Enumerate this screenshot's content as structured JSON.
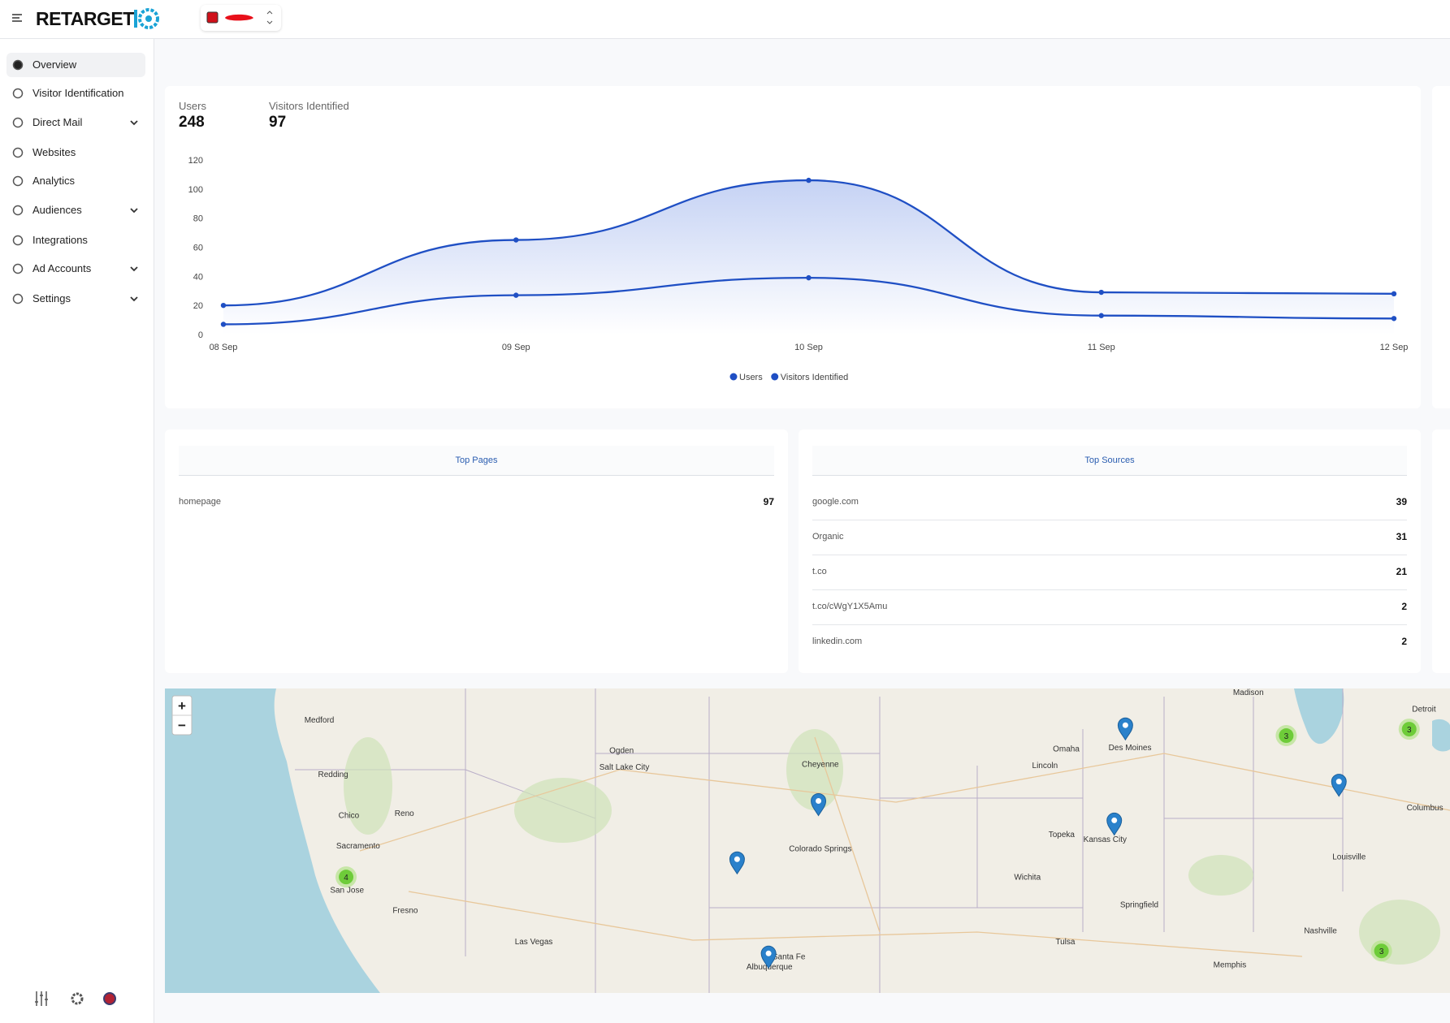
{
  "header": {
    "logo": "RETARGET"
  },
  "sidebar": {
    "items": [
      "Overview",
      "Visitor Identification",
      "Direct Mail",
      "Websites",
      "Analytics",
      "Audiences",
      "Integrations",
      "Ad Accounts",
      "Settings"
    ]
  },
  "stats": [
    {
      "label": "Users",
      "value": 248
    },
    {
      "label": "Visitors Identified",
      "value": 97
    }
  ],
  "chart_data": {
    "type": "line",
    "categories": [
      "08 Sep",
      "09 Sep",
      "10 Sep",
      "11 Sep",
      "12 Sep"
    ],
    "series": [
      {
        "name": "Users",
        "color": "#1f4fc4",
        "values": [
          20,
          65,
          106,
          29,
          28
        ]
      },
      {
        "name": "Visitors Identified",
        "color": "#1f4fc4",
        "values": [
          7,
          27,
          39,
          13,
          11
        ]
      }
    ],
    "ylim": [
      0,
      120
    ],
    "yticks": [
      0,
      20,
      40,
      60,
      80,
      100,
      120
    ],
    "legend": "bottom"
  },
  "top_pages": {
    "title": "Top Pages",
    "rows": [
      [
        "homepage",
        97
      ]
    ]
  },
  "top_sources": {
    "title": "Top Sources",
    "rows": [
      [
        "google.com",
        39
      ],
      [
        "Organic",
        31
      ],
      [
        "t.co",
        21
      ],
      [
        "t.co/cWgY1X5Amu",
        2
      ],
      [
        "linkedin.com",
        2
      ]
    ]
  },
  "map": {
    "zoom": [
      "+",
      "−"
    ],
    "cities": [
      "Medford",
      "Redding",
      "Chico",
      "Sacramento",
      "Reno",
      "San Jose",
      "Fresno",
      "Las Vegas",
      "Ogden",
      "Salt Lake City",
      "Cheyenne",
      "Colorado Springs",
      "Albuquerque",
      "Omaha",
      "Lincoln",
      "Des Moines",
      "Kansas City",
      "Wichita",
      "Tulsa",
      "Madison",
      "Louisville",
      "Nashville",
      "Memphis",
      "Columbus",
      "Detroit",
      "Springfield",
      "Topeka",
      "Santa Fe"
    ],
    "clusters": [
      4,
      3,
      3,
      3
    ]
  }
}
